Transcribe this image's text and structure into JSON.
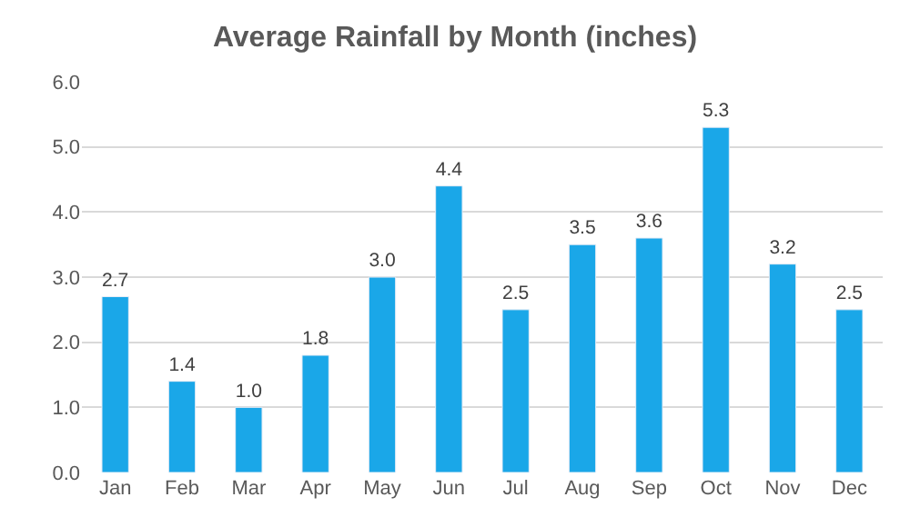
{
  "chart_data": {
    "type": "bar",
    "title": "Average Rainfall by Month (inches)",
    "categories": [
      "Jan",
      "Feb",
      "Mar",
      "Apr",
      "May",
      "Jun",
      "Jul",
      "Aug",
      "Sep",
      "Oct",
      "Nov",
      "Dec"
    ],
    "values": [
      2.7,
      1.4,
      1.0,
      1.8,
      3.0,
      4.4,
      2.5,
      3.5,
      3.6,
      5.3,
      3.2,
      2.5
    ],
    "value_labels": [
      "2.7",
      "1.4",
      "1.0",
      "1.8",
      "3.0",
      "4.4",
      "2.5",
      "3.5",
      "3.6",
      "5.3",
      "3.2",
      "2.5"
    ],
    "color": "#1aa7e8",
    "ylim": [
      0,
      6
    ],
    "yticks": [
      {
        "value": 0,
        "label": "0.0"
      },
      {
        "value": 1,
        "label": "1.0"
      },
      {
        "value": 2,
        "label": "2.0"
      },
      {
        "value": 3,
        "label": "3.0"
      },
      {
        "value": 4,
        "label": "4.0"
      },
      {
        "value": 5,
        "label": "5.0"
      },
      {
        "value": 6,
        "label": "6.0"
      }
    ],
    "grid": "y"
  }
}
